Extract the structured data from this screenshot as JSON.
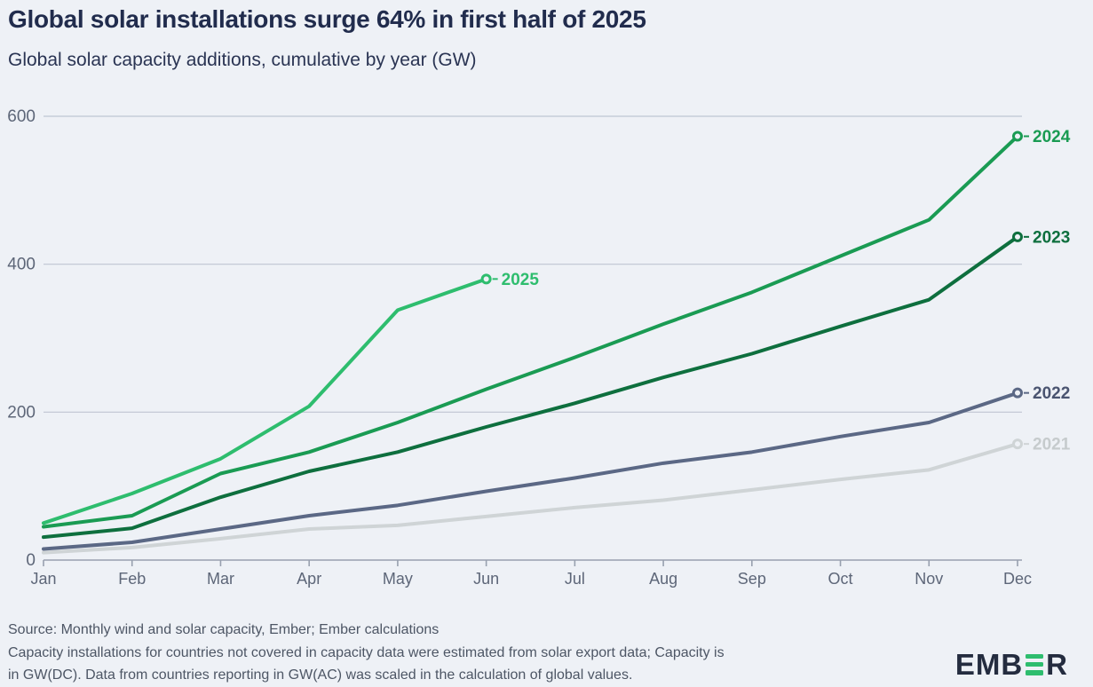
{
  "header": {
    "title": "Global solar installations surge 64% in first half of 2025",
    "subtitle": "Global solar capacity additions, cumulative by year (GW)"
  },
  "chart_data": {
    "type": "line",
    "title": "Global solar installations surge 64% in first half of 2025",
    "subtitle": "Global solar capacity additions, cumulative by year (GW)",
    "unit": "GW",
    "x_labels": [
      "Jan",
      "Feb",
      "Mar",
      "Apr",
      "May",
      "Jun",
      "Jul",
      "Aug",
      "Sep",
      "Oct",
      "Nov",
      "Dec"
    ],
    "y_ticks": [
      0,
      200,
      400,
      600
    ],
    "ylim": [
      0,
      600
    ],
    "grid": true,
    "legend_position": "line-end-labels",
    "series": [
      {
        "name": "2021",
        "color": "#cfd4d6",
        "label_color": "#c6cbcd",
        "values": [
          10,
          17,
          29,
          42,
          47,
          59,
          71,
          81,
          95,
          109,
          122,
          157
        ]
      },
      {
        "name": "2022",
        "color": "#5b6885",
        "label_color": "#4a5470",
        "values": [
          15,
          24,
          42,
          60,
          74,
          93,
          111,
          131,
          146,
          167,
          186,
          226
        ]
      },
      {
        "name": "2023",
        "color": "#0e6f3e",
        "label_color": "#0e6f3e",
        "values": [
          31,
          43,
          85,
          120,
          146,
          180,
          212,
          247,
          279,
          316,
          352,
          437
        ]
      },
      {
        "name": "2024",
        "color": "#1a9b53",
        "label_color": "#1a9b53",
        "values": [
          45,
          60,
          117,
          146,
          186,
          231,
          274,
          319,
          362,
          411,
          460,
          573
        ]
      },
      {
        "name": "2025",
        "color": "#2ebd6e",
        "label_color": "#2ebd6e",
        "values": [
          50,
          90,
          137,
          208,
          338,
          380
        ]
      }
    ]
  },
  "footer": {
    "source_line1": "Source: Monthly wind and solar capacity, Ember; Ember calculations",
    "source_line2": "Capacity installations for countries not covered in capacity data were estimated from solar export data; Capacity is",
    "source_line3": "in GW(DC). Data from countries reporting in GW(AC) was scaled in the calculation of global values.",
    "logo_part1": "EMB",
    "logo_part2": "R"
  },
  "colors": {
    "background": "#eef1f6",
    "title_text": "#212c4d",
    "subtitle_text": "#2a3453",
    "axis_text": "#5d6678",
    "gridline": "#bfc5d2",
    "axis_line": "#98a0af",
    "source_text": "#4d5665",
    "logo_text": "#242c3f",
    "logo_accent": "#2ebd6e"
  }
}
